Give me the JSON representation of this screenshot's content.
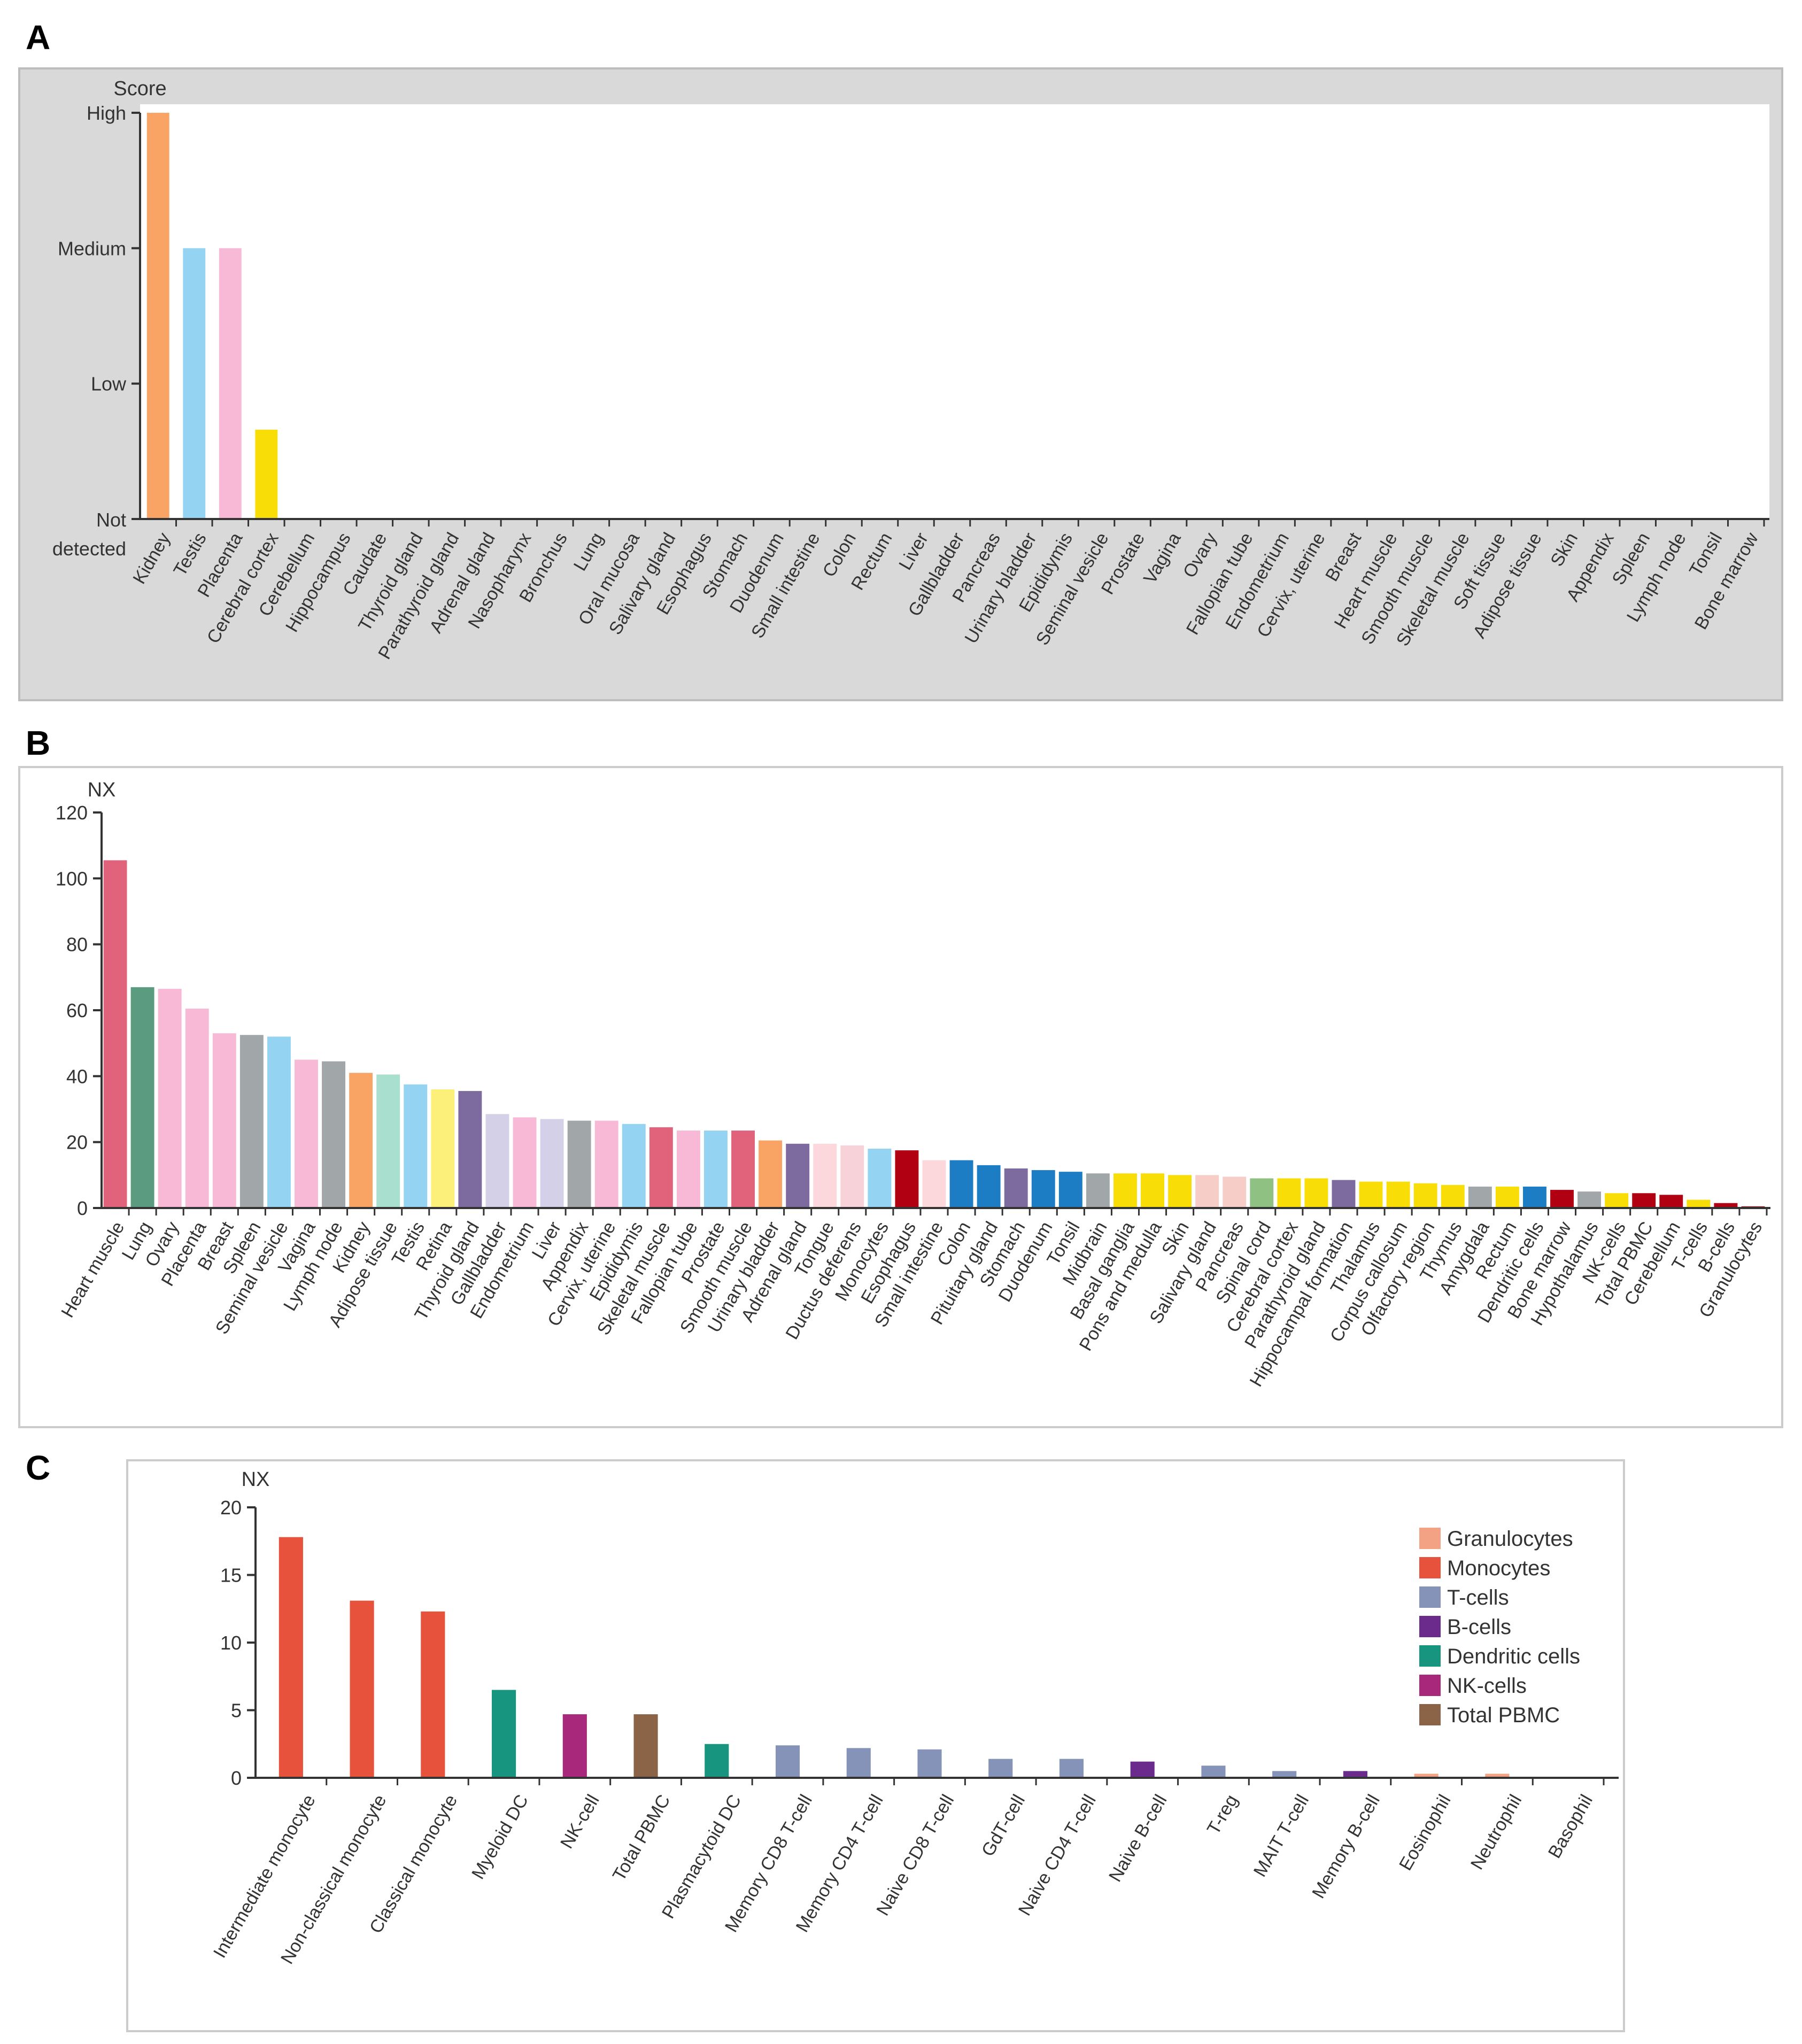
{
  "panels": {
    "a": {
      "letter": "A"
    },
    "b": {
      "letter": "B"
    },
    "c": {
      "letter": "C"
    }
  },
  "chart_data": [
    {
      "id": "A",
      "type": "bar",
      "ylabel": "Score",
      "y_levels": [
        "Not detected",
        "Low",
        "Medium",
        "High"
      ],
      "ylim": [
        0,
        3
      ],
      "categories": [
        "Kidney",
        "Testis",
        "Placenta",
        "Cerebral cortex",
        "Cerebellum",
        "Hippocampus",
        "Caudate",
        "Thyroid gland",
        "Parathyroid gland",
        "Adrenal gland",
        "Nasopharynx",
        "Bronchus",
        "Lung",
        "Oral mucosa",
        "Salivary gland",
        "Esophagus",
        "Stomach",
        "Duodenum",
        "Small intestine",
        "Colon",
        "Rectum",
        "Liver",
        "Gallbladder",
        "Pancreas",
        "Urinary bladder",
        "Epididymis",
        "Seminal vesicle",
        "Prostate",
        "Vagina",
        "Ovary",
        "Fallopian tube",
        "Endometrium",
        "Cervix, uterine",
        "Breast",
        "Heart muscle",
        "Smooth muscle",
        "Skeletal muscle",
        "Soft tissue",
        "Adipose tissue",
        "Skin",
        "Appendix",
        "Spleen",
        "Lymph node",
        "Tonsil",
        "Bone marrow"
      ],
      "values": [
        3,
        2,
        2,
        0.66,
        0,
        0,
        0,
        0,
        0,
        0,
        0,
        0,
        0,
        0,
        0,
        0,
        0,
        0,
        0,
        0,
        0,
        0,
        0,
        0,
        0,
        0,
        0,
        0,
        0,
        0,
        0,
        0,
        0,
        0,
        0,
        0,
        0,
        0,
        0,
        0,
        0,
        0,
        0,
        0,
        0
      ],
      "colors": [
        "#f9a365",
        "#94d3f2",
        "#f7b9d6",
        "#f9dd07"
      ],
      "background": "#d9d9d9",
      "grid": false
    },
    {
      "id": "B",
      "type": "bar",
      "ylabel": "NX",
      "ylim": [
        0,
        120
      ],
      "yticks": [
        "0",
        "20",
        "40",
        "60",
        "80",
        "100",
        "120"
      ],
      "categories": [
        "Heart muscle",
        "Lung",
        "Ovary",
        "Placenta",
        "Breast",
        "Spleen",
        "Seminal vesicle",
        "Vagina",
        "Lymph node",
        "Kidney",
        "Adipose tissue",
        "Testis",
        "Retina",
        "Thyroid gland",
        "Gallbladder",
        "Endometrium",
        "Liver",
        "Appendix",
        "Cervix, uterine",
        "Epididymis",
        "Skeletal muscle",
        "Fallopian tube",
        "Prostate",
        "Smooth muscle",
        "Urinary bladder",
        "Adrenal gland",
        "Tongue",
        "Ductus deferens",
        "Monocytes",
        "Esophagus",
        "Small intestine",
        "Colon",
        "Pituitary gland",
        "Stomach",
        "Duodenum",
        "Tonsil",
        "Midbrain",
        "Basal ganglia",
        "Pons and medulla",
        "Skin",
        "Salivary gland",
        "Pancreas",
        "Spinal cord",
        "Cerebral cortex",
        "Parathyroid gland",
        "Hippocampal formation",
        "Thalamus",
        "Corpus callosum",
        "Olfactory region",
        "Thymus",
        "Amygdala",
        "Rectum",
        "Dendritic cells",
        "Bone marrow",
        "Hypothalamus",
        "NK-cells",
        "Total PBMC",
        "Cerebellum",
        "T-cells",
        "B-cells",
        "Granulocytes"
      ],
      "values": [
        105.5,
        67,
        66.5,
        60.5,
        53,
        52.5,
        52,
        45,
        44.5,
        41,
        40.5,
        37.5,
        36,
        35.5,
        28.5,
        27.5,
        27,
        26.5,
        26.5,
        25.5,
        24.5,
        23.5,
        23.5,
        23.5,
        20.5,
        19.5,
        19.5,
        19,
        18,
        17.5,
        14.5,
        14.5,
        13,
        12,
        11.5,
        11,
        10.5,
        10.5,
        10.5,
        10,
        10,
        9.5,
        9,
        9,
        9,
        8.5,
        8,
        8,
        7.5,
        7,
        6.5,
        6.5,
        6.5,
        5.5,
        5,
        4.5,
        4.5,
        4,
        2.5,
        1.5,
        0.5
      ],
      "colors": [
        "#e1637b",
        "#5b9b7f",
        "#f7b9d6",
        "#f7b9d6",
        "#f7b9d6",
        "#a1a6a9",
        "#94d3f2",
        "#f7b9d6",
        "#a1a6a9",
        "#f9a365",
        "#a9dfce",
        "#94d3f2",
        "#fdf07a",
        "#7d6a9e",
        "#d4d0e8",
        "#f7b9d6",
        "#d4d0e8",
        "#a1a6a9",
        "#f7b9d6",
        "#94d3f2",
        "#e1637b",
        "#f7b9d6",
        "#94d3f2",
        "#e1637b",
        "#f9a365",
        "#7d6a9e",
        "#fcd7dc",
        "#f7d3d9",
        "#94d3f2",
        "#b00012",
        "#fcd7dc",
        "#1c7dc4",
        "#1c7dc4",
        "#7d6a9e",
        "#1c7dc4",
        "#1c7dc4",
        "#a1a6a9",
        "#f9dd07",
        "#f9dd07",
        "#f9dd07",
        "#f7cdc7",
        "#f7cdc7",
        "#8fc282",
        "#f9dd07",
        "#f9dd07",
        "#7d6a9e",
        "#f9dd07",
        "#f9dd07",
        "#f9dd07",
        "#f9dd07",
        "#a1a6a9",
        "#f9dd07",
        "#1c7dc4",
        "#b00012",
        "#a1a6a9",
        "#f9dd07",
        "#b00012",
        "#b00012",
        "#f9dd07",
        "#b00012",
        "#b00012",
        "#b00012"
      ],
      "grid": false
    },
    {
      "id": "C",
      "type": "bar",
      "ylabel": "NX",
      "ylim": [
        0,
        20
      ],
      "yticks": [
        "0",
        "5",
        "10",
        "15",
        "20"
      ],
      "categories": [
        "Intermediate monocyte",
        "Non-classical monocyte",
        "Classical monocyte",
        "Myeloid DC",
        "NK-cell",
        "Total PBMC",
        "Plasmacytoid DC",
        "Memory CD8 T-cell",
        "Memory CD4 T-cell",
        "Naive CD8 T-cell",
        "GdT-cell",
        "Naive CD4 T-cell",
        "Naive B-cell",
        "T-reg",
        "MAIT T-cell",
        "Memory B-cell",
        "Eosinophil",
        "Neutrophil",
        "Basophil"
      ],
      "values": [
        17.8,
        13.1,
        12.3,
        6.5,
        4.7,
        4.7,
        2.5,
        2.4,
        2.2,
        2.1,
        1.4,
        1.4,
        1.2,
        0.9,
        0.5,
        0.5,
        0.3,
        0.3,
        0
      ],
      "series_of": [
        "Monocytes",
        "Monocytes",
        "Monocytes",
        "Dendritic cells",
        "NK-cells",
        "Total PBMC",
        "Dendritic cells",
        "T-cells",
        "T-cells",
        "T-cells",
        "T-cells",
        "T-cells",
        "B-cells",
        "T-cells",
        "T-cells",
        "B-cells",
        "Granulocytes",
        "Granulocytes",
        "Granulocytes"
      ],
      "legend": [
        {
          "name": "Granulocytes",
          "color": "#f3a383"
        },
        {
          "name": "Monocytes",
          "color": "#e6523b"
        },
        {
          "name": "T-cells",
          "color": "#8493b7"
        },
        {
          "name": "B-cells",
          "color": "#6a2b8c"
        },
        {
          "name": "Dendritic cells",
          "color": "#17957f"
        },
        {
          "name": "NK-cells",
          "color": "#a8287c"
        },
        {
          "name": "Total PBMC",
          "color": "#8b6347"
        }
      ],
      "legend_position": "top-right",
      "grid": false
    }
  ]
}
